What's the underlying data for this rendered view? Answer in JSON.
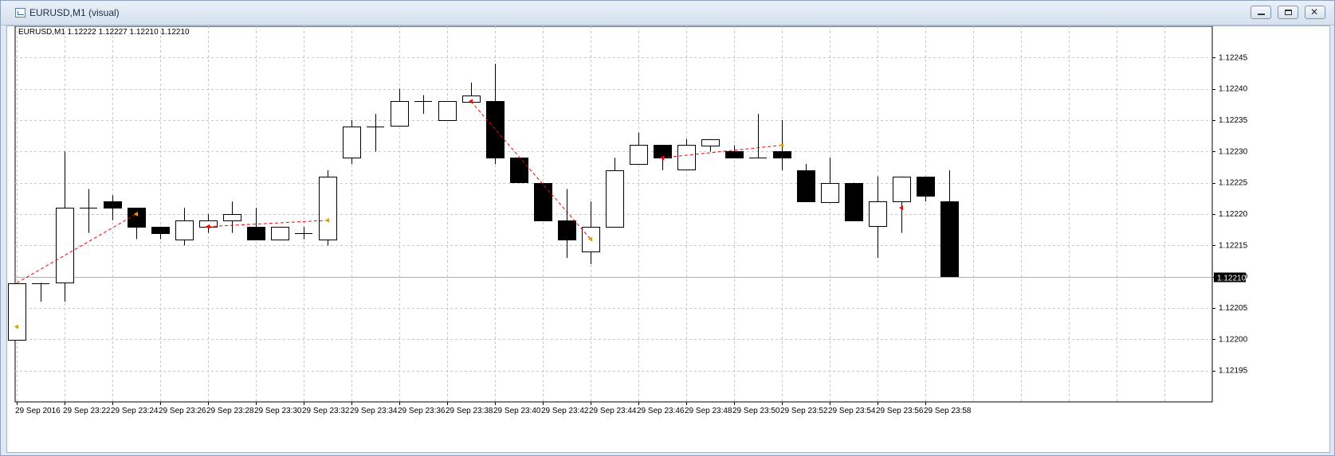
{
  "window": {
    "title": "EURUSD,M1 (visual)",
    "icon": "chart-window-icon",
    "buttons": {
      "minimize": "minimize-icon",
      "maximize": "maximize-icon",
      "close_glyph": "✕"
    }
  },
  "header_text": "EURUSD,M1  1.12222 1.12227 1.12210 1.12210",
  "colors": {
    "bull_body": "#ffffff",
    "bear_body": "#000000",
    "trade_line": "#ff0000",
    "arrow_buy": "#d4a017",
    "arrow_sell": "#ff0000",
    "grid": "#c8c8c8"
  },
  "chart_data": {
    "type": "candlestick",
    "symbol": "EURUSD",
    "timeframe": "M1",
    "ylim": [
      1.1219,
      1.1225
    ],
    "y_ticks": [
      1.12195,
      1.122,
      1.12205,
      1.1221,
      1.12215,
      1.1222,
      1.12225,
      1.1223,
      1.12235,
      1.1224,
      1.12245
    ],
    "y_tick_labels": [
      "1.12195",
      "1.12200",
      "1.12205",
      "1.12210",
      "1.12215",
      "1.12220",
      "1.12225",
      "1.12230",
      "1.12235",
      "1.12240",
      "1.12245"
    ],
    "current_price": 1.1221,
    "current_price_label": "1.12210",
    "x_tick_labels": [
      "29 Sep 2016",
      "29 Sep 23:22",
      "29 Sep 23:24",
      "29 Sep 23:26",
      "29 Sep 23:28",
      "29 Sep 23:30",
      "29 Sep 23:32",
      "29 Sep 23:34",
      "29 Sep 23:36",
      "29 Sep 23:38",
      "29 Sep 23:40",
      "29 Sep 23:42",
      "29 Sep 23:44",
      "29 Sep 23:46",
      "29 Sep 23:48",
      "29 Sep 23:50",
      "29 Sep 23:52",
      "29 Sep 23:54",
      "29 Sep 23:56",
      "29 Sep 23:58"
    ],
    "grid": true,
    "candles": [
      {
        "o": 1.122,
        "h": 1.12209,
        "l": 1.122,
        "c": 1.12209
      },
      {
        "o": 1.12209,
        "h": 1.12209,
        "l": 1.12206,
        "c": 1.12209
      },
      {
        "o": 1.12209,
        "h": 1.1223,
        "l": 1.12206,
        "c": 1.12221
      },
      {
        "o": 1.12221,
        "h": 1.12224,
        "l": 1.12217,
        "c": 1.12221
      },
      {
        "o": 1.12222,
        "h": 1.12223,
        "l": 1.12219,
        "c": 1.12221
      },
      {
        "o": 1.12221,
        "h": 1.12221,
        "l": 1.12216,
        "c": 1.12218
      },
      {
        "o": 1.12218,
        "h": 1.12218,
        "l": 1.12216,
        "c": 1.12217
      },
      {
        "o": 1.12216,
        "h": 1.12221,
        "l": 1.12215,
        "c": 1.12219
      },
      {
        "o": 1.12218,
        "h": 1.1222,
        "l": 1.12217,
        "c": 1.12219
      },
      {
        "o": 1.12219,
        "h": 1.12222,
        "l": 1.12217,
        "c": 1.1222
      },
      {
        "o": 1.12218,
        "h": 1.12221,
        "l": 1.12216,
        "c": 1.12216
      },
      {
        "o": 1.12216,
        "h": 1.12218,
        "l": 1.12216,
        "c": 1.12218
      },
      {
        "o": 1.12217,
        "h": 1.12218,
        "l": 1.12216,
        "c": 1.12217
      },
      {
        "o": 1.12216,
        "h": 1.12227,
        "l": 1.12215,
        "c": 1.12226
      },
      {
        "o": 1.12229,
        "h": 1.12235,
        "l": 1.12228,
        "c": 1.12234
      },
      {
        "o": 1.12234,
        "h": 1.12236,
        "l": 1.1223,
        "c": 1.12234
      },
      {
        "o": 1.12234,
        "h": 1.1224,
        "l": 1.12234,
        "c": 1.12238
      },
      {
        "o": 1.12238,
        "h": 1.12239,
        "l": 1.12236,
        "c": 1.12238
      },
      {
        "o": 1.12235,
        "h": 1.12238,
        "l": 1.12235,
        "c": 1.12238
      },
      {
        "o": 1.12238,
        "h": 1.12241,
        "l": 1.12238,
        "c": 1.12239
      },
      {
        "o": 1.12238,
        "h": 1.12244,
        "l": 1.12228,
        "c": 1.12229
      },
      {
        "o": 1.12229,
        "h": 1.12229,
        "l": 1.12225,
        "c": 1.12225
      },
      {
        "o": 1.12225,
        "h": 1.12225,
        "l": 1.12219,
        "c": 1.12219
      },
      {
        "o": 1.12219,
        "h": 1.12224,
        "l": 1.12213,
        "c": 1.12216
      },
      {
        "o": 1.12214,
        "h": 1.12222,
        "l": 1.12212,
        "c": 1.12218
      },
      {
        "o": 1.12218,
        "h": 1.12229,
        "l": 1.12218,
        "c": 1.12227
      },
      {
        "o": 1.12228,
        "h": 1.12233,
        "l": 1.12228,
        "c": 1.12231
      },
      {
        "o": 1.12231,
        "h": 1.12231,
        "l": 1.12227,
        "c": 1.12229
      },
      {
        "o": 1.12227,
        "h": 1.12232,
        "l": 1.12227,
        "c": 1.12231
      },
      {
        "o": 1.12231,
        "h": 1.12232,
        "l": 1.1223,
        "c": 1.12232
      },
      {
        "o": 1.1223,
        "h": 1.12231,
        "l": 1.12229,
        "c": 1.12229
      },
      {
        "o": 1.12229,
        "h": 1.12236,
        "l": 1.12229,
        "c": 1.12229
      },
      {
        "o": 1.1223,
        "h": 1.12235,
        "l": 1.12227,
        "c": 1.12229
      },
      {
        "o": 1.12227,
        "h": 1.12228,
        "l": 1.12222,
        "c": 1.12222
      },
      {
        "o": 1.12222,
        "h": 1.12229,
        "l": 1.12222,
        "c": 1.12225
      },
      {
        "o": 1.12225,
        "h": 1.12225,
        "l": 1.12219,
        "c": 1.12219
      },
      {
        "o": 1.12218,
        "h": 1.12226,
        "l": 1.12213,
        "c": 1.12222
      },
      {
        "o": 1.12222,
        "h": 1.12226,
        "l": 1.12217,
        "c": 1.12226
      },
      {
        "o": 1.12226,
        "h": 1.12226,
        "l": 1.12222,
        "c": 1.12223
      },
      {
        "o": 1.12222,
        "h": 1.12227,
        "l": 1.1221,
        "c": 1.1221
      }
    ],
    "trades": [
      {
        "from_bar": 0,
        "from_price": 1.12209,
        "to_bar": 5,
        "to_price": 1.1222
      },
      {
        "from_bar": 8,
        "from_price": 1.12218,
        "to_bar": 13,
        "to_price": 1.12219
      },
      {
        "from_bar": 19,
        "from_price": 1.12238,
        "to_bar": 24,
        "to_price": 1.12216
      },
      {
        "from_bar": 27,
        "from_price": 1.12229,
        "to_bar": 32,
        "to_price": 1.12231
      }
    ],
    "markers": [
      {
        "bar": 0,
        "price": 1.12202,
        "kind": "buy"
      },
      {
        "bar": 5,
        "price": 1.1222,
        "kind": "buy"
      },
      {
        "bar": 8,
        "price": 1.12218,
        "kind": "sell"
      },
      {
        "bar": 13,
        "price": 1.12219,
        "kind": "buy"
      },
      {
        "bar": 19,
        "price": 1.12238,
        "kind": "sell"
      },
      {
        "bar": 24,
        "price": 1.12216,
        "kind": "buy"
      },
      {
        "bar": 27,
        "price": 1.12229,
        "kind": "sell"
      },
      {
        "bar": 32,
        "price": 1.12231,
        "kind": "buy"
      },
      {
        "bar": 37,
        "price": 1.12221,
        "kind": "sell"
      }
    ]
  }
}
